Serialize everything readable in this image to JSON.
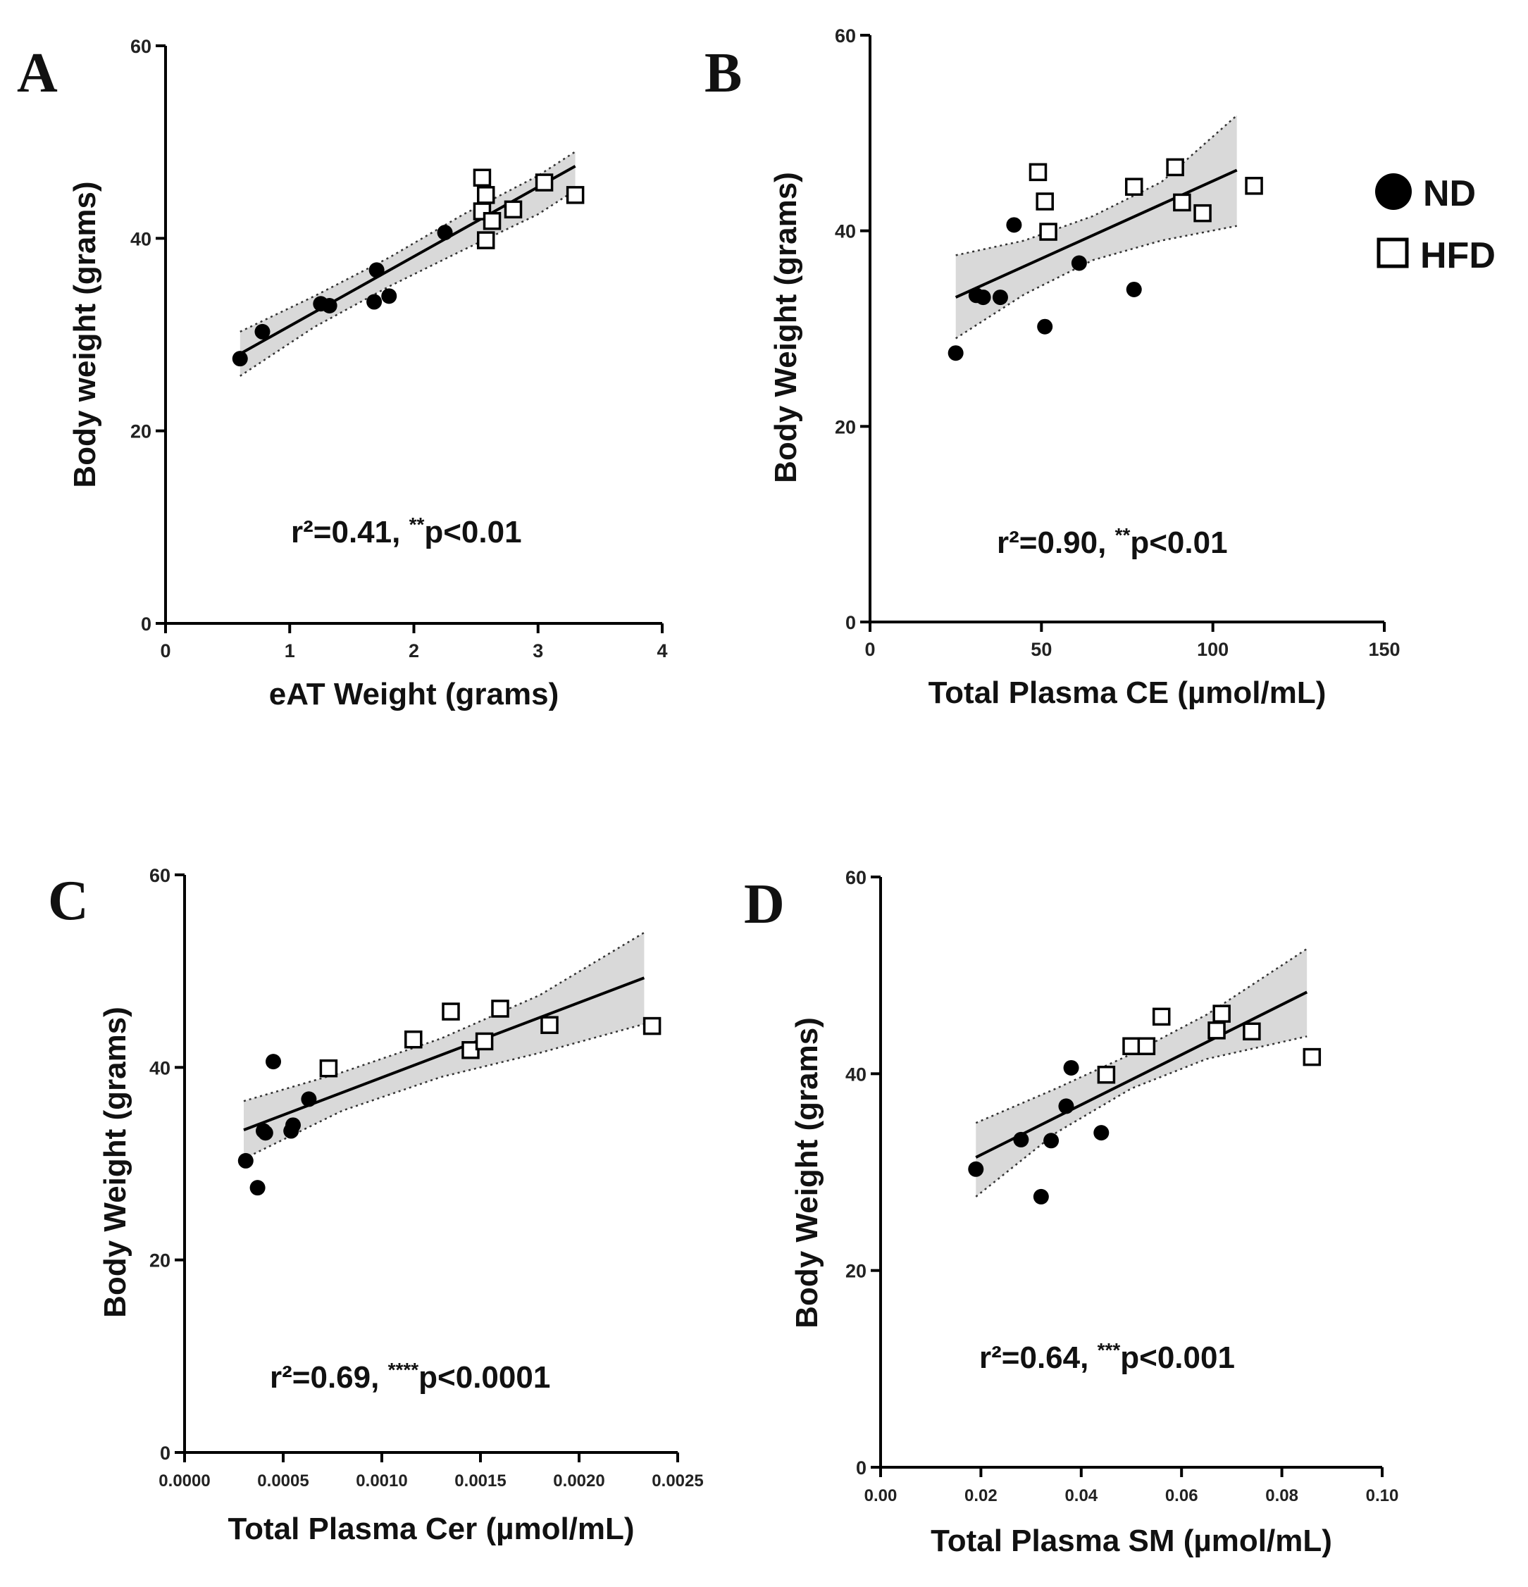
{
  "legend": {
    "items": [
      {
        "label": "ND",
        "marker": "filled-circle"
      },
      {
        "label": "HFD",
        "marker": "open-square"
      }
    ]
  },
  "chart_data": [
    {
      "panel": "A",
      "type": "scatter",
      "xlabel": "eAT Weight (grams)",
      "ylabel": "Body weight (grams)",
      "xlim": [
        0,
        4
      ],
      "ylim": [
        0,
        60
      ],
      "xticks": [
        0,
        1,
        2,
        3,
        4
      ],
      "xtick_labels": [
        "0",
        "1",
        "2",
        "3",
        "4"
      ],
      "yticks": [
        0,
        20,
        40,
        60
      ],
      "ytick_labels": [
        "0",
        "20",
        "40",
        "60"
      ],
      "annotation": {
        "r2": "r²=0.41, ",
        "stars": "**",
        "p": "p<0.01"
      },
      "fit": {
        "x": [
          0.6,
          3.3
        ],
        "y": [
          28.0,
          47.5
        ]
      },
      "band_upper": [
        [
          0.6,
          30.3
        ],
        [
          1.2,
          34.0
        ],
        [
          1.8,
          38.0
        ],
        [
          2.4,
          42.5
        ],
        [
          3.0,
          46.5
        ],
        [
          3.3,
          49.0
        ]
      ],
      "band_lower": [
        [
          0.6,
          25.7
        ],
        [
          1.2,
          30.8
        ],
        [
          1.8,
          35.0
        ],
        [
          2.4,
          38.8
        ],
        [
          3.0,
          42.5
        ],
        [
          3.3,
          45.0
        ]
      ],
      "series": [
        {
          "name": "ND",
          "points": [
            [
              0.6,
              27.5
            ],
            [
              0.78,
              30.3
            ],
            [
              1.25,
              33.2
            ],
            [
              1.32,
              33.0
            ],
            [
              1.68,
              33.4
            ],
            [
              1.7,
              36.7
            ],
            [
              1.8,
              34.0
            ],
            [
              2.25,
              40.6
            ]
          ]
        },
        {
          "name": "HFD",
          "points": [
            [
              2.55,
              46.3
            ],
            [
              2.58,
              44.5
            ],
            [
              2.55,
              42.8
            ],
            [
              2.58,
              39.8
            ],
            [
              2.63,
              41.8
            ],
            [
              2.8,
              43.0
            ],
            [
              3.05,
              45.8
            ],
            [
              3.3,
              44.5
            ]
          ]
        }
      ]
    },
    {
      "panel": "B",
      "type": "scatter",
      "xlabel": "Total Plasma CE (µmol/mL)",
      "ylabel": "Body Weight (grams)",
      "xlim": [
        0,
        150
      ],
      "ylim": [
        0,
        60
      ],
      "xticks": [
        0,
        50,
        100,
        150
      ],
      "xtick_labels": [
        "0",
        "50",
        "100",
        "150"
      ],
      "yticks": [
        0,
        20,
        40,
        60
      ],
      "ytick_labels": [
        "0",
        "20",
        "40",
        "60"
      ],
      "annotation": {
        "r2": "r²=0.90, ",
        "stars": "**",
        "p": "p<0.01"
      },
      "fit": {
        "x": [
          25,
          107
        ],
        "y": [
          33.2,
          46.2
        ]
      },
      "band_upper": [
        [
          25,
          37.5
        ],
        [
          45,
          39.0
        ],
        [
          65,
          41.5
        ],
        [
          85,
          45.0
        ],
        [
          107,
          51.8
        ]
      ],
      "band_lower": [
        [
          25,
          29.0
        ],
        [
          45,
          33.5
        ],
        [
          65,
          37.0
        ],
        [
          85,
          39.0
        ],
        [
          107,
          40.5
        ]
      ],
      "series": [
        {
          "name": "ND",
          "points": [
            [
              25,
              27.5
            ],
            [
              31,
              33.4
            ],
            [
              33,
              33.2
            ],
            [
              38,
              33.2
            ],
            [
              42,
              40.6
            ],
            [
              51,
              30.2
            ],
            [
              61,
              36.7
            ],
            [
              77,
              34.0
            ]
          ]
        },
        {
          "name": "HFD",
          "points": [
            [
              49,
              46.0
            ],
            [
              51,
              43.0
            ],
            [
              52,
              39.9
            ],
            [
              77,
              44.5
            ],
            [
              89,
              46.5
            ],
            [
              91,
              42.9
            ],
            [
              97,
              41.8
            ],
            [
              112,
              44.6
            ]
          ]
        }
      ]
    },
    {
      "panel": "C",
      "type": "scatter",
      "xlabel": "Total Plasma Cer (µmol/mL)",
      "ylabel": "Body Weight (grams)",
      "xlim": [
        0,
        0.0025
      ],
      "ylim": [
        0,
        60
      ],
      "xticks": [
        0,
        0.0005,
        0.001,
        0.0015,
        0.002,
        0.0025
      ],
      "xtick_labels": [
        "0.0000",
        "0.0005",
        "0.0010",
        "0.0015",
        "0.0020",
        "0.0025"
      ],
      "yticks": [
        0,
        20,
        40,
        60
      ],
      "ytick_labels": [
        "0",
        "20",
        "40",
        "60"
      ],
      "annotation": {
        "r2": "r²=0.69, ",
        "stars": "****",
        "p": "p<0.0001"
      },
      "fit": {
        "x": [
          0.0003,
          0.00233
        ],
        "y": [
          33.5,
          49.3
        ]
      },
      "band_upper": [
        [
          0.0003,
          36.5
        ],
        [
          0.0008,
          39.5
        ],
        [
          0.0013,
          43.0
        ],
        [
          0.0018,
          47.5
        ],
        [
          0.00233,
          54.0
        ]
      ],
      "band_lower": [
        [
          0.0003,
          30.5
        ],
        [
          0.0008,
          35.5
        ],
        [
          0.0013,
          39.0
        ],
        [
          0.0018,
          41.5
        ],
        [
          0.00233,
          44.5
        ]
      ],
      "series": [
        {
          "name": "ND",
          "points": [
            [
              0.00031,
              30.3
            ],
            [
              0.00037,
              27.5
            ],
            [
              0.0004,
              33.4
            ],
            [
              0.00041,
              33.2
            ],
            [
              0.00045,
              40.6
            ],
            [
              0.00054,
              33.4
            ],
            [
              0.00055,
              34.0
            ],
            [
              0.00063,
              36.7
            ]
          ]
        },
        {
          "name": "HFD",
          "points": [
            [
              0.00073,
              39.9
            ],
            [
              0.00116,
              42.9
            ],
            [
              0.00135,
              45.8
            ],
            [
              0.00145,
              41.8
            ],
            [
              0.00152,
              42.7
            ],
            [
              0.0016,
              46.1
            ],
            [
              0.00185,
              44.4
            ],
            [
              0.00237,
              44.3
            ]
          ]
        }
      ]
    },
    {
      "panel": "D",
      "type": "scatter",
      "xlabel": "Total Plasma SM (µmol/mL)",
      "ylabel": "Body Weight (grams)",
      "xlim": [
        0,
        0.1
      ],
      "ylim": [
        0,
        60
      ],
      "xticks": [
        0,
        0.02,
        0.04,
        0.06,
        0.08,
        0.1
      ],
      "xtick_labels": [
        "0.00",
        "0.02",
        "0.04",
        "0.06",
        "0.08",
        "0.10"
      ],
      "yticks": [
        0,
        20,
        40,
        60
      ],
      "ytick_labels": [
        "0",
        "20",
        "40",
        "60"
      ],
      "annotation": {
        "r2": "r²=0.64, ",
        "stars": "***",
        "p": "p<0.001"
      },
      "fit": {
        "x": [
          0.019,
          0.085
        ],
        "y": [
          31.5,
          48.3
        ]
      },
      "band_upper": [
        [
          0.019,
          35.0
        ],
        [
          0.035,
          38.5
        ],
        [
          0.05,
          42.0
        ],
        [
          0.065,
          46.0
        ],
        [
          0.085,
          52.7
        ]
      ],
      "band_lower": [
        [
          0.019,
          27.5
        ],
        [
          0.035,
          34.0
        ],
        [
          0.05,
          38.5
        ],
        [
          0.065,
          41.5
        ],
        [
          0.085,
          43.8
        ]
      ],
      "series": [
        {
          "name": "ND",
          "points": [
            [
              0.019,
              30.3
            ],
            [
              0.028,
              33.3
            ],
            [
              0.032,
              27.5
            ],
            [
              0.034,
              33.2
            ],
            [
              0.037,
              36.7
            ],
            [
              0.038,
              40.6
            ],
            [
              0.044,
              34.0
            ]
          ]
        },
        {
          "name": "HFD",
          "points": [
            [
              0.045,
              39.9
            ],
            [
              0.05,
              42.8
            ],
            [
              0.053,
              42.8
            ],
            [
              0.056,
              45.8
            ],
            [
              0.067,
              44.4
            ],
            [
              0.068,
              46.1
            ],
            [
              0.074,
              44.3
            ],
            [
              0.086,
              41.7
            ]
          ]
        }
      ]
    }
  ]
}
